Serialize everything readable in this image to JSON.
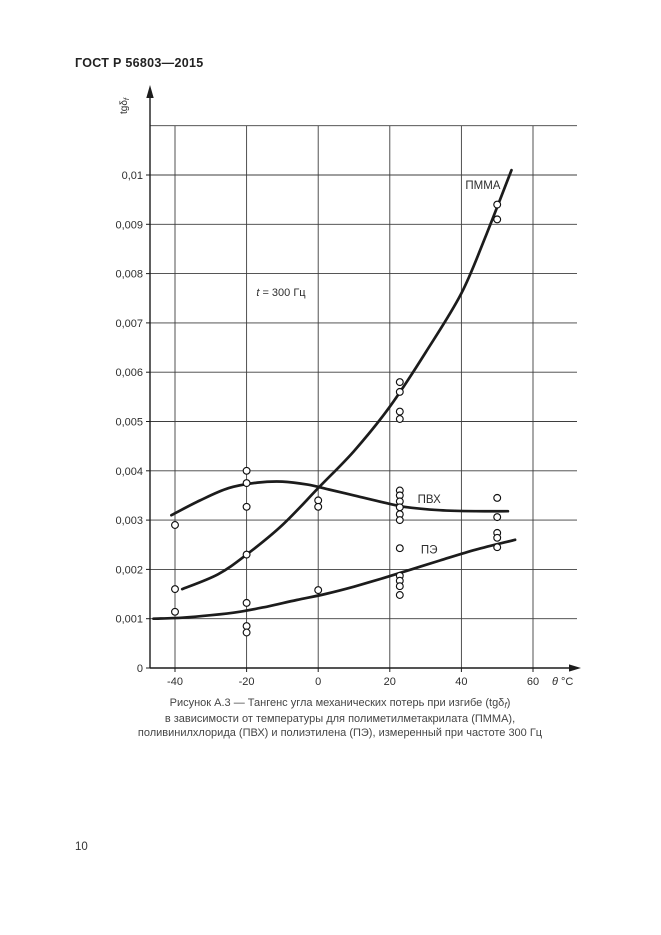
{
  "page": {
    "header": "ГОСТ Р 56803—2015",
    "page_number": "10"
  },
  "figure": {
    "caption_line1_prefix": "Рисунок А.3 — Тангенс угла механических потерь при изгибе (tgδ",
    "caption_line1_sub": "f",
    "caption_line1_suffix": ")",
    "caption_line2": "в зависимости от температуры для полиметилметакрилата (ПММА),",
    "caption_line3": "поливинилхлорида (ПВХ) и полиэтилена (ПЭ), измеренный при частоте 300 Гц"
  },
  "chart_data": {
    "type": "scatter",
    "title": "",
    "xlabel_var": "θ",
    "xlabel_unit": "°C",
    "ylabel_main": "tgδ",
    "ylabel_sub": "f",
    "annotation": {
      "var": "t",
      "rest": " = 300 Гц",
      "pos": [
        -10.4,
        0.00763
      ]
    },
    "xlim": [
      -47,
      63
    ],
    "ylim": [
      0,
      0.011
    ],
    "grid": true,
    "legend_position": "inline-labels",
    "xticks": [
      -40,
      -20,
      0,
      20,
      40,
      60
    ],
    "xtick_labels": [
      "-40",
      "-20",
      "0",
      "20",
      "40",
      "60"
    ],
    "yticks": [
      0,
      0.001,
      0.002,
      0.003,
      0.004,
      0.005,
      0.006,
      0.007,
      0.008,
      0.009,
      0.01
    ],
    "ytick_labels": [
      "0",
      "0,001",
      "0,002",
      "0,003",
      "0,004",
      "0,005",
      "0,006",
      "0,007",
      "0,008",
      "0,009",
      "0,01"
    ],
    "series": [
      {
        "id": "pmma",
        "name": "ПММА",
        "label_pos": [
          46,
          0.0098
        ],
        "curve": [
          [
            -38,
            0.0016
          ],
          [
            -28,
            0.0019
          ],
          [
            -20,
            0.0023
          ],
          [
            -10,
            0.0029
          ],
          [
            0,
            0.00365
          ],
          [
            10,
            0.0044
          ],
          [
            20,
            0.0053
          ],
          [
            30,
            0.0064
          ],
          [
            40,
            0.0076
          ],
          [
            47,
            0.0088
          ],
          [
            54,
            0.0101
          ]
        ],
        "points": [
          [
            -40,
            0.0016
          ],
          [
            -20,
            0.0023
          ],
          [
            22.8,
            0.0058
          ],
          [
            22.8,
            0.0056
          ],
          [
            22.8,
            0.0052
          ],
          [
            22.8,
            0.00505
          ],
          [
            50,
            0.0094
          ],
          [
            50,
            0.0091
          ]
        ]
      },
      {
        "id": "pvc",
        "name": "ПВХ",
        "label_pos": [
          31,
          0.00343
        ],
        "curve": [
          [
            -41,
            0.0031
          ],
          [
            -33,
            0.0034
          ],
          [
            -25,
            0.00365
          ],
          [
            -17,
            0.00376
          ],
          [
            -10,
            0.00378
          ],
          [
            -3,
            0.00372
          ],
          [
            3,
            0.00362
          ],
          [
            10,
            0.0035
          ],
          [
            17,
            0.00338
          ],
          [
            24,
            0.00327
          ],
          [
            34,
            0.0032
          ],
          [
            44,
            0.00318
          ],
          [
            53,
            0.00318
          ]
        ],
        "points": [
          [
            -40,
            0.0029
          ],
          [
            -20,
            0.004
          ],
          [
            -20,
            0.00375
          ],
          [
            -20,
            0.00327
          ],
          [
            0,
            0.0034
          ],
          [
            0,
            0.00327
          ],
          [
            22.8,
            0.0036
          ],
          [
            22.8,
            0.0035
          ],
          [
            22.8,
            0.00338
          ],
          [
            22.8,
            0.00326
          ],
          [
            22.8,
            0.00312
          ],
          [
            22.8,
            0.003
          ],
          [
            50,
            0.00345
          ],
          [
            50,
            0.00306
          ]
        ]
      },
      {
        "id": "pe",
        "name": "ПЭ",
        "label_pos": [
          31,
          0.0024
        ],
        "curve": [
          [
            -46,
            0.001
          ],
          [
            -38,
            0.00102
          ],
          [
            -30,
            0.00107
          ],
          [
            -22,
            0.00114
          ],
          [
            -14,
            0.00125
          ],
          [
            -6,
            0.00138
          ],
          [
            2,
            0.0015
          ],
          [
            10,
            0.00165
          ],
          [
            18,
            0.00182
          ],
          [
            26,
            0.002
          ],
          [
            34,
            0.00218
          ],
          [
            44,
            0.0024
          ],
          [
            55,
            0.0026
          ]
        ],
        "points": [
          [
            -40,
            0.00114
          ],
          [
            -20,
            0.00132
          ],
          [
            -20,
            0.00085
          ],
          [
            -20,
            0.00072
          ],
          [
            0,
            0.00158
          ],
          [
            22.8,
            0.00243
          ],
          [
            22.8,
            0.00187
          ],
          [
            22.8,
            0.00177
          ],
          [
            22.8,
            0.00166
          ],
          [
            22.8,
            0.00148
          ],
          [
            50,
            0.00274
          ],
          [
            50,
            0.00264
          ],
          [
            50,
            0.00245
          ]
        ]
      }
    ]
  }
}
